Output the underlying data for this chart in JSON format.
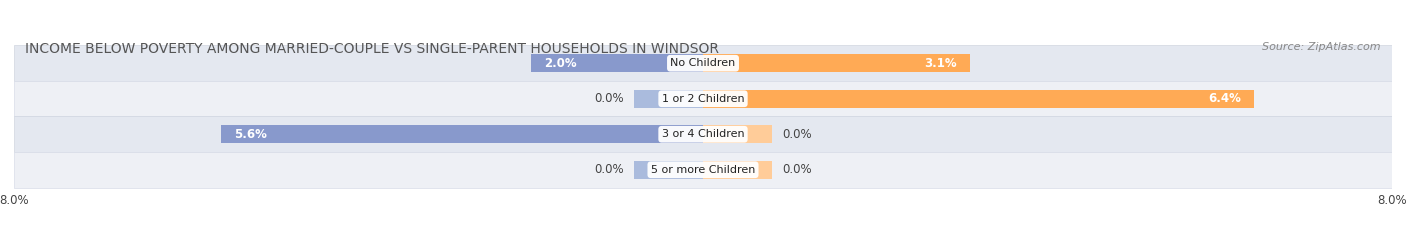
{
  "title": "INCOME BELOW POVERTY AMONG MARRIED-COUPLE VS SINGLE-PARENT HOUSEHOLDS IN WINDSOR",
  "source": "Source: ZipAtlas.com",
  "categories": [
    "No Children",
    "1 or 2 Children",
    "3 or 4 Children",
    "5 or more Children"
  ],
  "married_values": [
    2.0,
    0.0,
    5.6,
    0.0
  ],
  "single_values": [
    3.1,
    6.4,
    0.0,
    0.0
  ],
  "married_color": "#8899cc",
  "married_color_light": "#aabbdd",
  "single_color": "#ffaa55",
  "single_color_light": "#ffcc99",
  "row_colors_dark": [
    "#dde3ec",
    "#e8ecf2"
  ],
  "row_colors_light": [
    "#eef1f7",
    "#f4f6fa"
  ],
  "xlim": 8.0,
  "bar_height": 0.52,
  "stub_size": 0.8,
  "title_fontsize": 10,
  "source_fontsize": 8,
  "value_fontsize": 8.5,
  "category_fontsize": 8,
  "axis_tick_fontsize": 8.5
}
